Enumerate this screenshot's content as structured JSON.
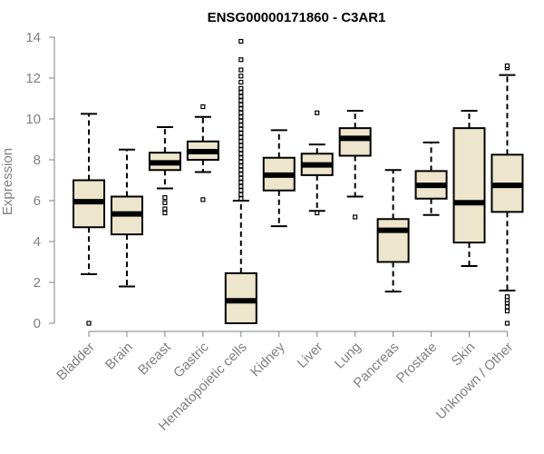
{
  "chart_data": {
    "type": "boxplot",
    "title": "ENSG00000171860 - C3AR1",
    "xlabel": "",
    "ylabel": "Expression",
    "ylim": [
      0,
      14
    ],
    "yticks": [
      0,
      2,
      4,
      6,
      8,
      10,
      12,
      14
    ],
    "box_fill": "#ede6cc",
    "categories": [
      "Bladder",
      "Brain",
      "Breast",
      "Gastric",
      "Hematopoietic cells",
      "Kidney",
      "Liver",
      "Lung",
      "Pancreas",
      "Prostate",
      "Skin",
      "Unknown / Other"
    ],
    "series": [
      {
        "name": "Bladder",
        "whisker_low": 2.4,
        "q1": 4.7,
        "median": 5.95,
        "q3": 7.0,
        "whisker_high": 10.25,
        "outliers": [
          0.0
        ]
      },
      {
        "name": "Brain",
        "whisker_low": 1.8,
        "q1": 4.35,
        "median": 5.35,
        "q3": 6.2,
        "whisker_high": 8.5,
        "outliers": []
      },
      {
        "name": "Breast",
        "whisker_low": 6.6,
        "q1": 7.5,
        "median": 7.85,
        "q3": 8.35,
        "whisker_high": 9.6,
        "outliers": [
          5.4,
          5.6,
          5.9,
          6.15
        ]
      },
      {
        "name": "Gastric",
        "whisker_low": 7.4,
        "q1": 8.0,
        "median": 8.4,
        "q3": 8.9,
        "whisker_high": 10.1,
        "outliers": [
          6.05,
          10.6
        ]
      },
      {
        "name": "Hematopoietic cells",
        "whisker_low": 0.0,
        "q1": 0.0,
        "median": 1.1,
        "q3": 2.45,
        "whisker_high": 6.0,
        "outliers": [
          6.1,
          6.3,
          6.5,
          6.7,
          6.9,
          7.1,
          7.3,
          7.5,
          7.7,
          7.9,
          8.1,
          8.3,
          8.5,
          8.7,
          8.9,
          9.1,
          9.3,
          9.5,
          9.7,
          9.9,
          10.1,
          10.3,
          10.5,
          10.7,
          10.9,
          11.1,
          11.3,
          11.5,
          11.8,
          12.1,
          12.4,
          12.9,
          13.8
        ]
      },
      {
        "name": "Kidney",
        "whisker_low": 4.75,
        "q1": 6.5,
        "median": 7.25,
        "q3": 8.1,
        "whisker_high": 9.45,
        "outliers": []
      },
      {
        "name": "Liver",
        "whisker_low": 5.5,
        "q1": 7.25,
        "median": 7.75,
        "q3": 8.3,
        "whisker_high": 8.75,
        "outliers": [
          5.4,
          10.3
        ]
      },
      {
        "name": "Lung",
        "whisker_low": 6.2,
        "q1": 8.2,
        "median": 9.05,
        "q3": 9.55,
        "whisker_high": 10.4,
        "outliers": [
          5.2
        ]
      },
      {
        "name": "Pancreas",
        "whisker_low": 1.55,
        "q1": 3.0,
        "median": 4.55,
        "q3": 5.1,
        "whisker_high": 7.5,
        "outliers": []
      },
      {
        "name": "Prostate",
        "whisker_low": 5.3,
        "q1": 6.1,
        "median": 6.75,
        "q3": 7.45,
        "whisker_high": 8.85,
        "outliers": []
      },
      {
        "name": "Skin",
        "whisker_low": 2.8,
        "q1": 3.95,
        "median": 5.9,
        "q3": 9.55,
        "whisker_high": 10.4,
        "outliers": []
      },
      {
        "name": "Unknown / Other",
        "whisker_low": 1.6,
        "q1": 5.45,
        "median": 6.75,
        "q3": 8.25,
        "whisker_high": 12.15,
        "outliers": [
          0.0,
          0.6,
          0.8,
          1.0,
          1.15,
          1.3,
          12.5,
          12.6
        ]
      }
    ]
  }
}
